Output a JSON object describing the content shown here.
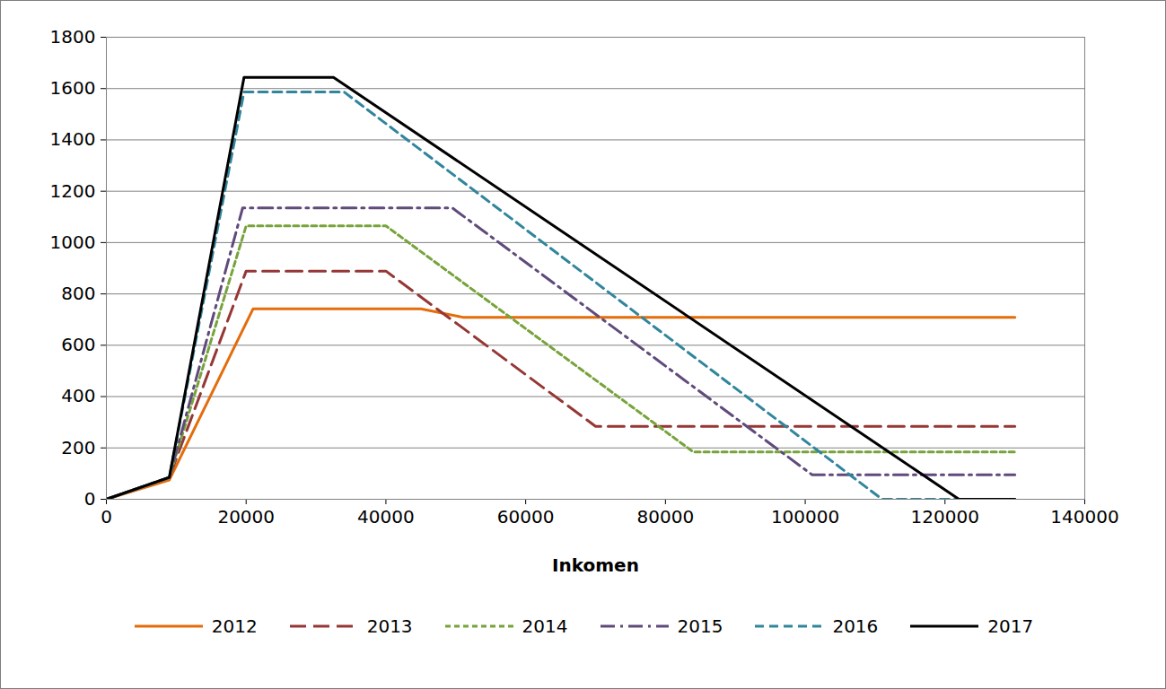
{
  "chart_data": {
    "type": "line",
    "x_label": "Inkomen",
    "xlim": [
      0,
      140000
    ],
    "xticks": [
      0,
      20000,
      40000,
      60000,
      80000,
      100000,
      120000,
      140000
    ],
    "ylim": [
      0,
      1800
    ],
    "yticks": [
      0,
      200,
      400,
      600,
      800,
      1000,
      1200,
      1400,
      1600,
      1800
    ],
    "grid": true,
    "legend": "bottom",
    "series": [
      {
        "name": "2012",
        "color": "#e46c0a",
        "line_style": "solid",
        "x": [
          0,
          9000,
          21000,
          45000,
          51000,
          130000
        ],
        "values": [
          0,
          75,
          742,
          742,
          709,
          709
        ]
      },
      {
        "name": "2013",
        "color": "#953735",
        "line_style": "longdash",
        "x": [
          0,
          9000,
          20000,
          40000,
          70000,
          130000
        ],
        "values": [
          0,
          85,
          889,
          889,
          284,
          284
        ]
      },
      {
        "name": "2014",
        "color": "#77a33b",
        "line_style": "dotted",
        "x": [
          0,
          9000,
          20000,
          40000,
          84000,
          130000
        ],
        "values": [
          0,
          85,
          1065,
          1065,
          184,
          184
        ]
      },
      {
        "name": "2015",
        "color": "#604a7b",
        "line_style": "dashdot",
        "x": [
          0,
          9000,
          19500,
          49500,
          101000,
          130000
        ],
        "values": [
          0,
          85,
          1135,
          1135,
          95,
          95
        ]
      },
      {
        "name": "2016",
        "color": "#31859c",
        "line_style": "dashed",
        "x": [
          0,
          9000,
          19700,
          34000,
          111000,
          130000
        ],
        "values": [
          0,
          85,
          1587,
          1587,
          0,
          0
        ]
      },
      {
        "name": "2017",
        "color": "#000000",
        "line_style": "solid",
        "x": [
          0,
          9000,
          19700,
          32500,
          122000,
          130000
        ],
        "values": [
          0,
          85,
          1644,
          1644,
          0,
          0
        ]
      }
    ]
  }
}
